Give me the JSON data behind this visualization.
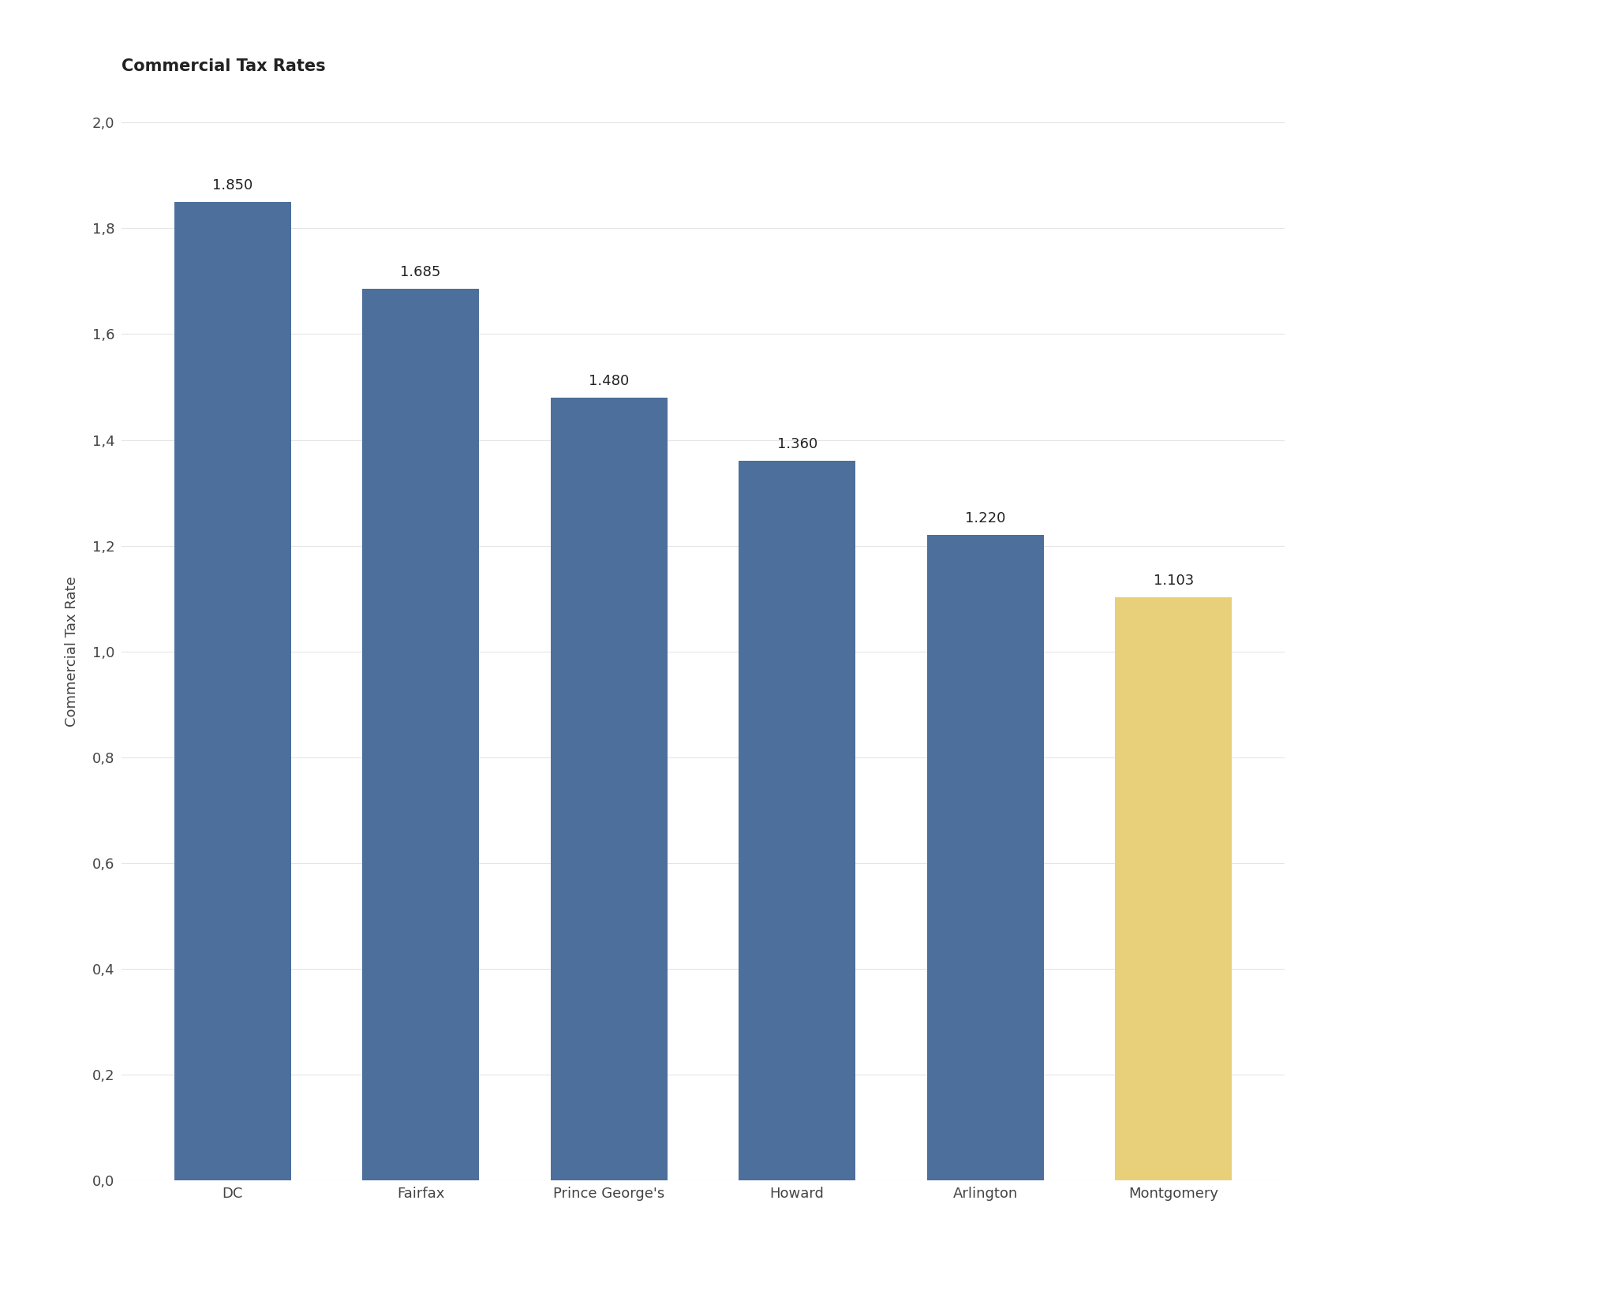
{
  "title": "Commercial Tax Rates",
  "ylabel": "Commercial Tax Rate",
  "categories": [
    "DC",
    "Fairfax",
    "Prince George's",
    "Howard",
    "Arlington",
    "Montgomery"
  ],
  "values": [
    1.85,
    1.685,
    1.48,
    1.36,
    1.22,
    1.103
  ],
  "bar_colors": [
    "#4d6f9b",
    "#4d6f9b",
    "#4d6f9b",
    "#4d6f9b",
    "#4d6f9b",
    "#e8d07a"
  ],
  "ylim": [
    0,
    2.0
  ],
  "yticks": [
    0.0,
    0.2,
    0.4,
    0.6,
    0.8,
    1.0,
    1.2,
    1.4,
    1.6,
    1.8,
    2.0
  ],
  "ytick_labels": [
    "0,0",
    "0,2",
    "0,4",
    "0,6",
    "0,8",
    "1,0",
    "1,2",
    "1,4",
    "1,6",
    "1,8",
    "2,0"
  ],
  "value_labels": [
    "1.850",
    "1.685",
    "1.480",
    "1.360",
    "1.220",
    "1.103"
  ],
  "background_color": "#ffffff",
  "grid_color": "#e5e5e5",
  "bar_width": 0.62,
  "title_fontsize": 15,
  "label_fontsize": 13,
  "tick_fontsize": 13,
  "value_label_fontsize": 13,
  "title_fontweight": "bold"
}
